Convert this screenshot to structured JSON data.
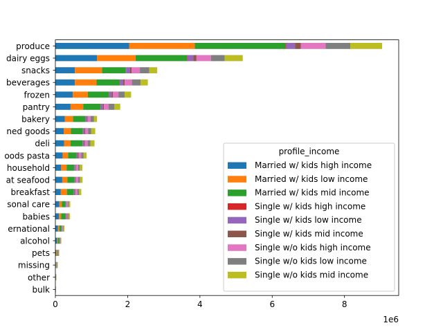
{
  "chart_data": {
    "type": "bar",
    "orientation": "horizontal",
    "stacked": true,
    "categories": [
      "produce",
      "dairy eggs",
      "snacks",
      "beverages",
      "frozen",
      "pantry",
      "bakery",
      "canned goods",
      "deli",
      "dry goods pasta",
      "household",
      "meat seafood",
      "breakfast",
      "personal care",
      "babies",
      "international",
      "alcohol",
      "pets",
      "missing",
      "other",
      "bulk"
    ],
    "category_labels_shown": [
      "produce",
      "dairy eggs",
      "snacks",
      "beverages",
      "frozen",
      "pantry",
      "bakery",
      "ned goods",
      "deli",
      "oods pasta",
      "household",
      "at seafood",
      "breakfast",
      "sonal care",
      "babies",
      "ernational",
      "alcohol",
      "pets",
      "missing",
      "other",
      "bulk"
    ],
    "series": [
      {
        "name": "Married w/ kids high income",
        "color": "#1f77b4",
        "values": [
          2040000,
          1150000,
          540000,
          540000,
          480000,
          420000,
          260000,
          230000,
          240000,
          200000,
          160000,
          190000,
          150000,
          110000,
          100000,
          70000,
          50000,
          20000,
          15000,
          8000,
          5000
        ]
      },
      {
        "name": "Married w/ kids low income",
        "color": "#ff7f0e",
        "values": [
          1820000,
          1070000,
          750000,
          600000,
          420000,
          350000,
          230000,
          200000,
          180000,
          150000,
          150000,
          140000,
          170000,
          70000,
          60000,
          40000,
          20000,
          25000,
          10000,
          5000,
          3000
        ]
      },
      {
        "name": "Married w/ kids mid income",
        "color": "#2ca02c",
        "values": [
          2510000,
          1420000,
          660000,
          640000,
          580000,
          480000,
          340000,
          330000,
          330000,
          240000,
          210000,
          200000,
          190000,
          100000,
          120000,
          60000,
          50000,
          20000,
          10000,
          5000,
          2000
        ]
      },
      {
        "name": "Single w/ kids high income",
        "color": "#d62728",
        "values": [
          20000,
          15000,
          8000,
          8000,
          5000,
          5000,
          3000,
          3000,
          3000,
          2000,
          2000,
          2000,
          2000,
          1000,
          1000,
          1000,
          1000,
          1000,
          0,
          0,
          0
        ]
      },
      {
        "name": "Single w/ kids low income",
        "color": "#9467bd",
        "values": [
          240000,
          160000,
          110000,
          90000,
          70000,
          60000,
          40000,
          40000,
          40000,
          30000,
          30000,
          30000,
          30000,
          20000,
          15000,
          10000,
          5000,
          5000,
          5000,
          2000,
          1000
        ]
      },
      {
        "name": "Single w/ kids mid income",
        "color": "#8c564b",
        "values": [
          160000,
          90000,
          40000,
          40000,
          40000,
          30000,
          20000,
          20000,
          20000,
          20000,
          15000,
          10000,
          15000,
          10000,
          10000,
          5000,
          5000,
          5000,
          3000,
          1000,
          1000
        ]
      },
      {
        "name": "Single w/o kids high income",
        "color": "#e377c2",
        "values": [
          690000,
          400000,
          230000,
          200000,
          150000,
          130000,
          80000,
          80000,
          80000,
          70000,
          60000,
          60000,
          50000,
          30000,
          30000,
          20000,
          15000,
          10000,
          5000,
          3000,
          2000
        ]
      },
      {
        "name": "Single w/o kids low income",
        "color": "#7f7f7f",
        "values": [
          680000,
          380000,
          260000,
          240000,
          170000,
          160000,
          90000,
          90000,
          80000,
          70000,
          50000,
          50000,
          50000,
          30000,
          30000,
          20000,
          10000,
          10000,
          10000,
          3000,
          2000
        ]
      },
      {
        "name": "Single w/o kids mid income",
        "color": "#bcbd22",
        "values": [
          880000,
          500000,
          220000,
          200000,
          180000,
          160000,
          90000,
          110000,
          110000,
          80000,
          70000,
          70000,
          60000,
          40000,
          40000,
          25000,
          10000,
          10000,
          10000,
          3000,
          2000
        ]
      }
    ],
    "xlim": [
      0,
      9500000
    ],
    "x_ticks": [
      0,
      2000000,
      4000000,
      6000000,
      8000000
    ],
    "x_tick_labels": [
      "0",
      "2",
      "4",
      "6",
      "8"
    ],
    "x_offset_label": "1e6",
    "legend": {
      "title": "profile_income",
      "placement": "center-right"
    },
    "grid": false
  }
}
